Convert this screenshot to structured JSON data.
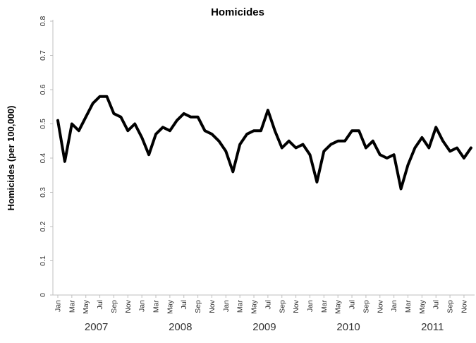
{
  "chart_data": {
    "type": "line",
    "title": "Homicides",
    "xlabel": "",
    "ylabel": "Homicides (per 100,000)",
    "ylim": [
      0,
      0.8
    ],
    "y_tick_step": 0.1,
    "y_tick_labels": [
      "0",
      "0.1",
      "0.2",
      "0.3",
      "0.4",
      "0.5",
      "0.6",
      "0.7",
      "0.8"
    ],
    "years": [
      "2007",
      "2008",
      "2009",
      "2010",
      "2011"
    ],
    "month_tick_labels": [
      "Jan",
      "Mar",
      "May",
      "Jul",
      "Sep",
      "Nov"
    ],
    "x_frequency": "monthly",
    "x_range_shown": "Jan 2007 - Dec 2011",
    "grid": false,
    "legend": "none",
    "line_color": "#000000",
    "axis_color": "#bfbfbf",
    "tick_label_color": "#333333",
    "background_color": "#ffffff",
    "series": [
      {
        "name": "Homicides (per 100,000)",
        "values": [
          0.51,
          0.39,
          0.5,
          0.48,
          0.52,
          0.56,
          0.58,
          0.58,
          0.53,
          0.52,
          0.48,
          0.5,
          0.46,
          0.41,
          0.47,
          0.49,
          0.48,
          0.51,
          0.53,
          0.52,
          0.52,
          0.48,
          0.47,
          0.45,
          0.42,
          0.36,
          0.44,
          0.47,
          0.48,
          0.48,
          0.54,
          0.48,
          0.43,
          0.45,
          0.43,
          0.44,
          0.41,
          0.33,
          0.42,
          0.44,
          0.45,
          0.45,
          0.48,
          0.48,
          0.43,
          0.45,
          0.41,
          0.4,
          0.41,
          0.31,
          0.38,
          0.43,
          0.46,
          0.43,
          0.49,
          0.45,
          0.42,
          0.43,
          0.4,
          0.43
        ]
      }
    ]
  }
}
